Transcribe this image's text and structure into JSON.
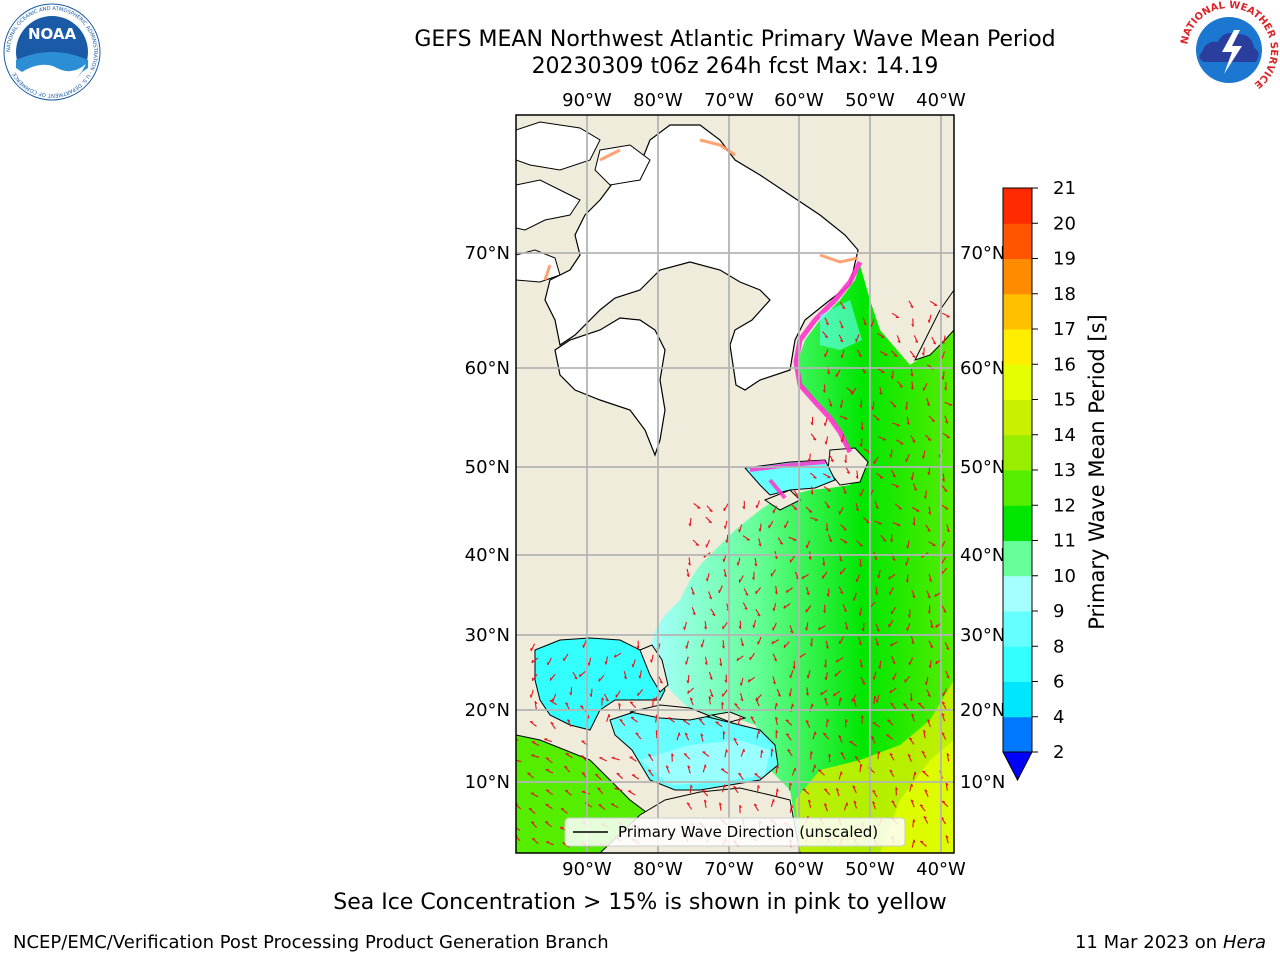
{
  "header": {
    "title_line1": "GEFS MEAN Northwest Atlantic Primary Wave Mean Period",
    "title_line2": "20230309 t06z 264h fcst   Max: 14.19"
  },
  "logos": {
    "noaa": {
      "text": "NOAA",
      "ring_text": "NATIONAL OCEANIC AND ATMOSPHERIC ADMINISTRATION · U.S. DEPARTMENT OF COMMERCE",
      "color": "#1a5aa6"
    },
    "nws": {
      "ring_text": "NATIONAL WEATHER SERVICE",
      "color": "#d8262b"
    }
  },
  "map": {
    "lon_labels": [
      "90°W",
      "80°W",
      "70°W",
      "60°W",
      "50°W",
      "40°W"
    ],
    "lat_labels": [
      "70°N",
      "60°N",
      "50°N",
      "40°N",
      "30°N",
      "20°N",
      "10°N"
    ],
    "legend_label": "Primary Wave Direction (unscaled)",
    "land_color": "#efecdc",
    "ice_free_unknown_color": "#ffffff",
    "arrow_color": "#e8141e"
  },
  "colorbar": {
    "label": "Primary Wave Mean Period [s]",
    "ticks": [
      "2",
      "4",
      "6",
      "8",
      "9",
      "10",
      "11",
      "12",
      "13",
      "14",
      "15",
      "16",
      "17",
      "18",
      "19",
      "20",
      "21"
    ],
    "colors": [
      "#0078ff",
      "#00e6ff",
      "#33ffff",
      "#66ffff",
      "#a6ffff",
      "#66ff99",
      "#00e600",
      "#55ee00",
      "#99ee00",
      "#c8f000",
      "#e6ff00",
      "#ffee00",
      "#ffc000",
      "#ff8c00",
      "#ff5500",
      "#ff2a00",
      "#ff0000"
    ],
    "under_color": "#0000ff"
  },
  "footer": {
    "note": "Sea Ice Concentration > 15% is shown in pink to yellow",
    "credit": "NCEP/EMC/Verification Post Processing Product Generation Branch",
    "date": "11 Mar 2023 on",
    "host": "Hera"
  }
}
